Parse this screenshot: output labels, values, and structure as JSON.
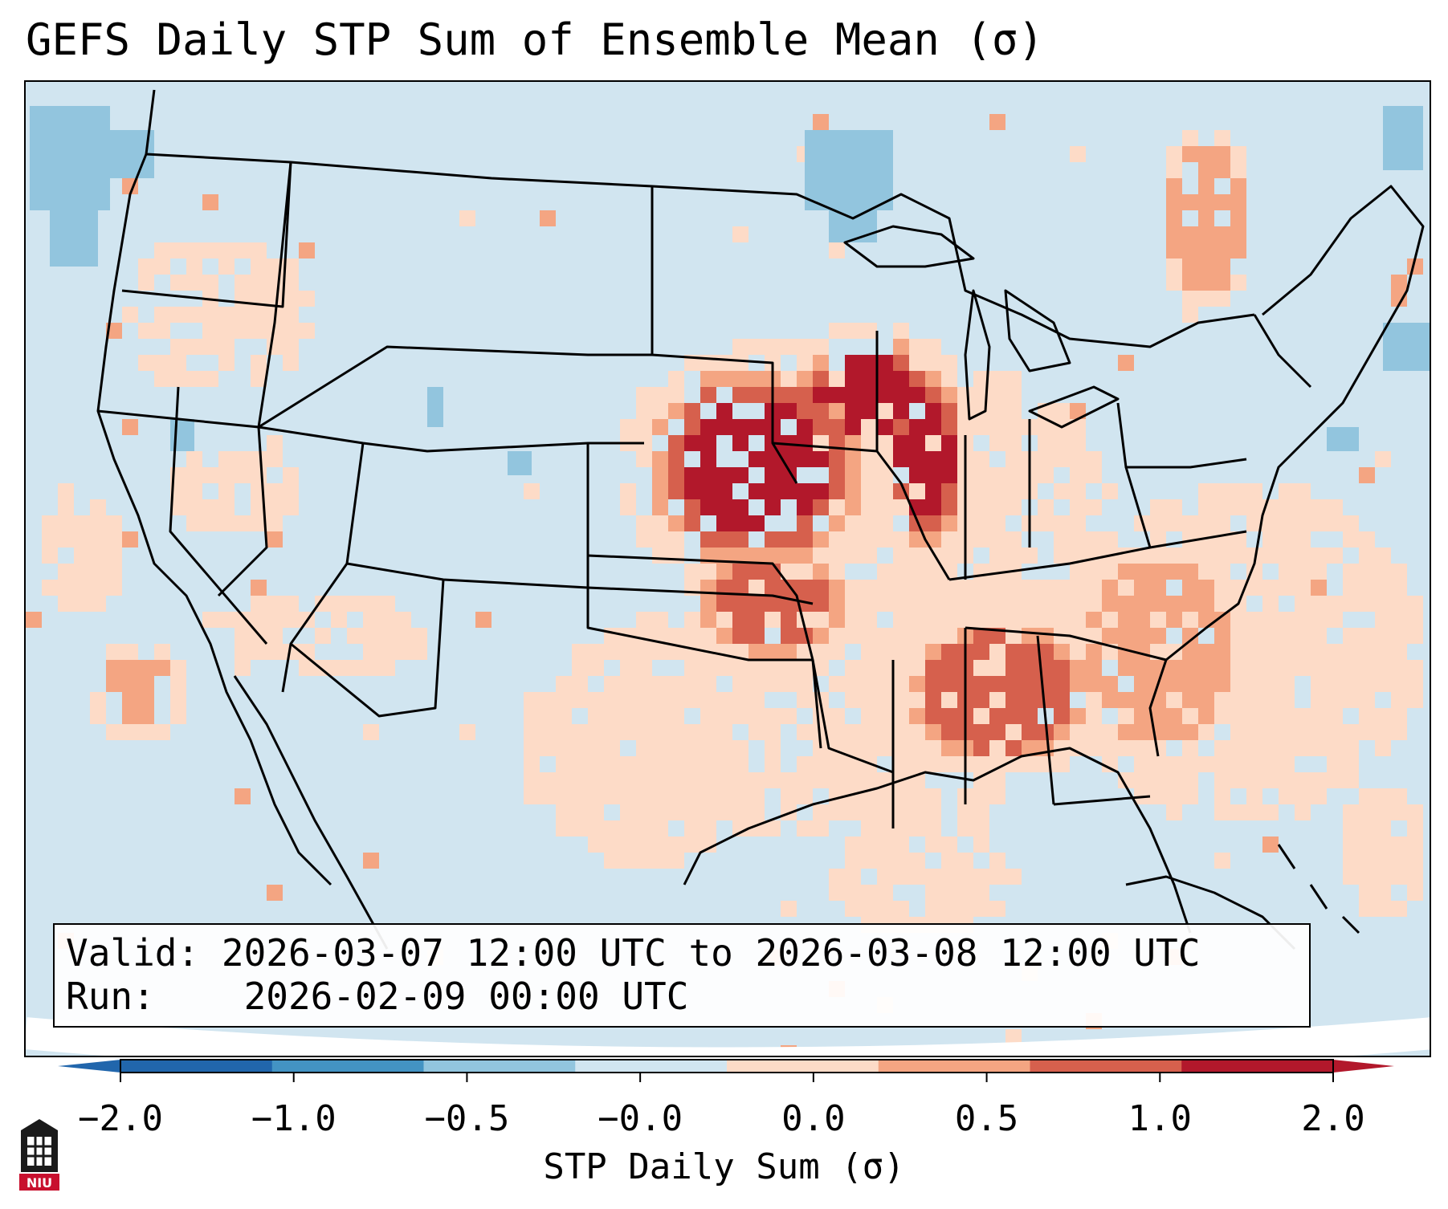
{
  "title": "GEFS Daily STP Sum of Ensemble Mean (σ)",
  "info": {
    "valid_label": "Valid:",
    "valid_value": "2026-03-07 12:00 UTC to 2026-03-08 12:00 UTC",
    "run_label": "Run:",
    "run_value": "2026-02-09 00:00 UTC"
  },
  "colorbar": {
    "label": "STP Daily Sum (σ)",
    "ticks": [
      "−2.0",
      "−1.0",
      "−0.5",
      "−0.0",
      "0.0",
      "0.5",
      "1.0",
      "2.0"
    ],
    "colors": [
      "#2166ac",
      "#4393c3",
      "#92c5de",
      "#d1e5f0",
      "#fddbc7",
      "#f4a582",
      "#d6604d",
      "#b2182b"
    ],
    "extend": "both"
  },
  "map": {
    "region": "CONUS",
    "variable": "STP daily sum anomaly",
    "background_color": "#d1e5f0",
    "high_anomaly_regions": [
      "Kansas",
      "Missouri",
      "Iowa",
      "Illinois",
      "Wisconsin",
      "Alabama",
      "Georgia"
    ]
  },
  "logo": {
    "text": "NIU",
    "name": "niu-logo"
  }
}
